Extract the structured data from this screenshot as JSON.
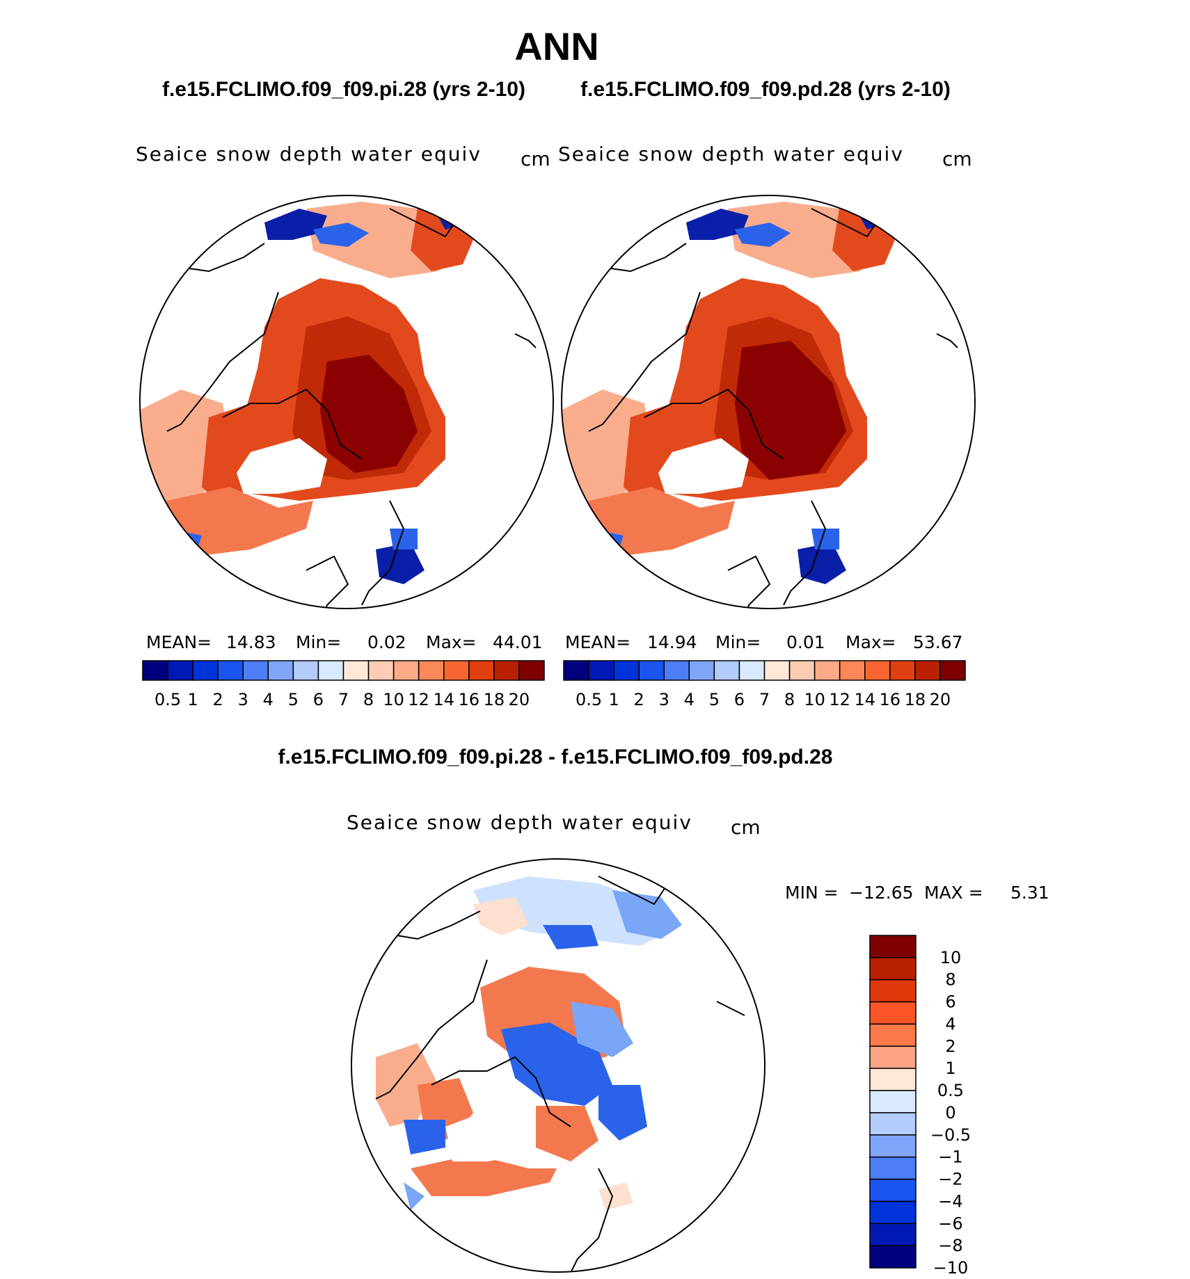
{
  "title": "ANN",
  "case_pi": "f.e15.FCLIMO.f09_f09.pi.28 (yrs 2-10)",
  "case_pd": "f.e15.FCLIMO.f09_f09.pd.28 (yrs 2-10)",
  "diff_title": "f.e15.FCLIMO.f09_f09.pi.28 - f.e15.FCLIMO.f09_f09.pd.28",
  "variable": "Seaice snow depth water equiv",
  "units": "cm",
  "panel_pi": {
    "mean_label": "MEAN=",
    "mean": "14.83",
    "min_label": "Min=",
    "min": "0.02",
    "max_label": "Max=",
    "max": "44.01"
  },
  "panel_pd": {
    "mean_label": "MEAN=",
    "mean": "14.94",
    "min_label": "Min=",
    "min": "0.01",
    "max_label": "Max=",
    "max": "53.67"
  },
  "diff_stats": {
    "min_label": "MIN =",
    "min": "−12.65",
    "max_label": "MAX =",
    "max": "5.31"
  },
  "abs_colorbar": {
    "colors": [
      "#00007f",
      "#0019b4",
      "#0033d9",
      "#1a55f0",
      "#4d7ef5",
      "#80a6fa",
      "#b3ccfc",
      "#d9e9ff",
      "#fee8d8",
      "#fdccb4",
      "#fcaa88",
      "#fb8858",
      "#f86530",
      "#e04010",
      "#b82000",
      "#7f0000"
    ],
    "labels": [
      "0.5",
      "1",
      "2",
      "3",
      "4",
      "5",
      "6",
      "7",
      "8",
      "10",
      "12",
      "14",
      "16",
      "18",
      "20"
    ]
  },
  "diff_colorbar": {
    "colors": [
      "#7f0000",
      "#b82000",
      "#e03a0c",
      "#fb5528",
      "#fc7a4a",
      "#fca484",
      "#fee8d8",
      "#d9e9ff",
      "#b3ccfc",
      "#80a6fa",
      "#4d7ef5",
      "#1a55f0",
      "#0033d9",
      "#0019b4",
      "#00007f"
    ],
    "labels": [
      "10",
      "8",
      "6",
      "4",
      "2",
      "1",
      "0.5",
      "0",
      "−0.5",
      "−1",
      "−2",
      "−4",
      "−6",
      "−8",
      "−10"
    ]
  },
  "map_colors": {
    "max": "#8b0000",
    "high": "#c02a06",
    "mid": "#e24a1e",
    "lowmid": "#f4784e",
    "low": "#f9ad8d",
    "pale": "#fde0cf",
    "blue_dark": "#0a1fa8",
    "blue": "#2a63ea",
    "blue_light": "#7aa6f7",
    "blue_pale": "#cfe2fd"
  }
}
